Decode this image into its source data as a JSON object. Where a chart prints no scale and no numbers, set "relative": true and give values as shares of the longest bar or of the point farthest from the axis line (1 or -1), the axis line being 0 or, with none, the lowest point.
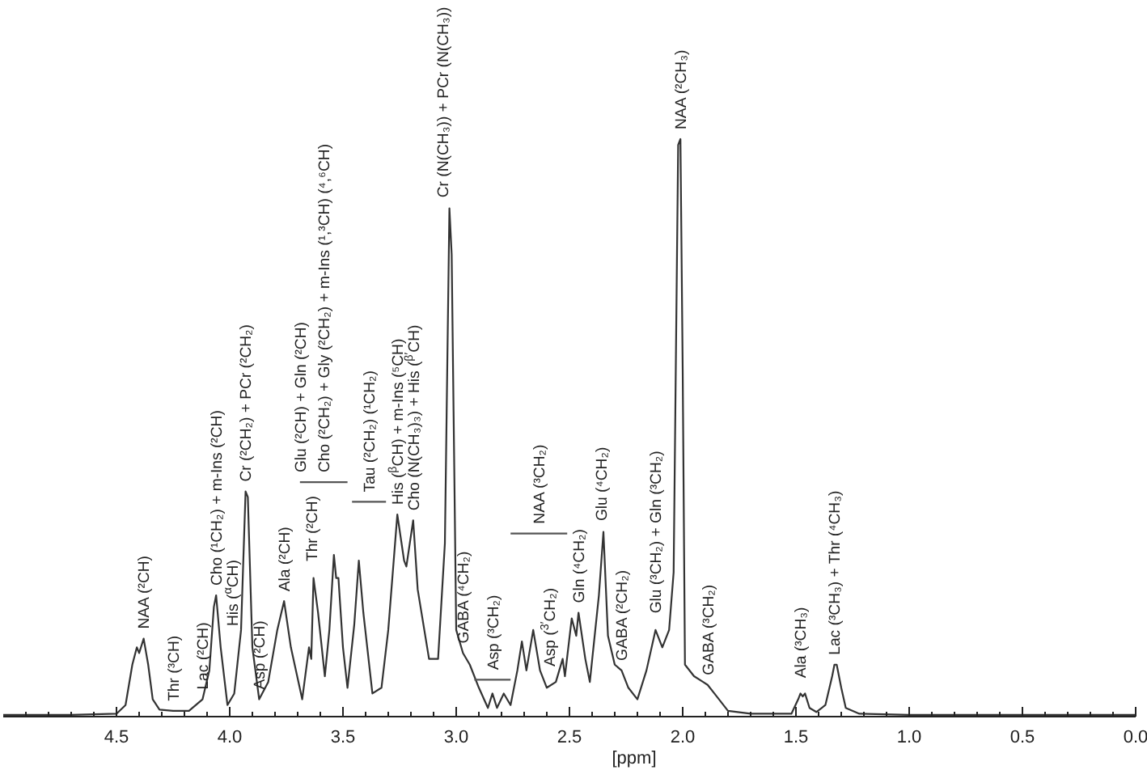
{
  "chart_data": {
    "type": "line",
    "relative": true,
    "xlabel": "[ppm]",
    "xlim": [
      5.0,
      0.0
    ],
    "xticks": [
      {
        "value": 4.9,
        "label": null
      },
      {
        "value": 4.8,
        "label": null
      },
      {
        "value": 4.7,
        "label": null
      },
      {
        "value": 4.6,
        "label": null
      },
      4.5,
      {
        "value": 4.4,
        "label": null
      },
      {
        "value": 4.3,
        "label": null
      },
      {
        "value": 4.2,
        "label": null
      },
      {
        "value": 4.1,
        "label": null
      },
      {
        "value": 4.0,
        "label": "4.0"
      },
      {
        "value": 3.9,
        "label": null
      },
      {
        "value": 3.8,
        "label": null
      },
      {
        "value": 3.7,
        "label": null
      },
      {
        "value": 3.6,
        "label": null
      },
      3.5,
      {
        "value": 3.4,
        "label": null
      },
      {
        "value": 3.3,
        "label": null
      },
      {
        "value": 3.2,
        "label": null
      },
      {
        "value": 3.1,
        "label": null
      },
      {
        "value": 3.0,
        "label": "3.0"
      },
      {
        "value": 2.9,
        "label": null
      },
      {
        "value": 2.8,
        "label": null
      },
      {
        "value": 2.7,
        "label": null
      },
      {
        "value": 2.6,
        "label": null
      },
      2.5,
      {
        "value": 2.4,
        "label": null
      },
      {
        "value": 2.3,
        "label": null
      },
      {
        "value": 2.2,
        "label": null
      },
      {
        "value": 2.1,
        "label": null
      },
      {
        "value": 2.0,
        "label": "2.0"
      },
      {
        "value": 1.9,
        "label": null
      },
      {
        "value": 1.8,
        "label": null
      },
      {
        "value": 1.7,
        "label": null
      },
      {
        "value": 1.6,
        "label": null
      },
      1.5,
      {
        "value": 1.4,
        "label": null
      },
      {
        "value": 1.3,
        "label": null
      },
      {
        "value": 1.2,
        "label": null
      },
      {
        "value": 1.1,
        "label": null
      },
      {
        "value": 1.0,
        "label": "1.0"
      },
      {
        "value": 0.9,
        "label": null
      },
      {
        "value": 0.8,
        "label": null
      },
      {
        "value": 0.7,
        "label": null
      },
      {
        "value": 0.6,
        "label": null
      },
      0.5,
      {
        "value": 0.4,
        "label": null
      },
      {
        "value": 0.3,
        "label": null
      },
      {
        "value": 0.2,
        "label": null
      },
      {
        "value": 0.1,
        "label": null
      },
      {
        "value": 0.0,
        "label": "0.0"
      }
    ],
    "x": [
      5.0,
      4.7,
      4.5,
      4.46,
      4.43,
      4.41,
      4.4,
      4.38,
      4.36,
      4.34,
      4.31,
      4.25,
      4.18,
      4.12,
      4.09,
      4.07,
      4.06,
      4.04,
      4.01,
      3.98,
      3.95,
      3.93,
      3.92,
      3.9,
      3.87,
      3.83,
      3.79,
      3.76,
      3.73,
      3.68,
      3.65,
      3.64,
      3.63,
      3.61,
      3.58,
      3.56,
      3.54,
      3.53,
      3.52,
      3.5,
      3.48,
      3.45,
      3.43,
      3.41,
      3.37,
      3.33,
      3.3,
      3.26,
      3.23,
      3.22,
      3.19,
      3.17,
      3.12,
      3.08,
      3.05,
      3.03,
      3.02,
      3.0,
      2.97,
      2.94,
      2.9,
      2.86,
      2.84,
      2.82,
      2.79,
      2.76,
      2.73,
      2.71,
      2.69,
      2.66,
      2.63,
      2.6,
      2.56,
      2.53,
      2.52,
      2.49,
      2.47,
      2.46,
      2.43,
      2.41,
      2.37,
      2.35,
      2.33,
      2.3,
      2.27,
      2.24,
      2.2,
      2.16,
      2.12,
      2.09,
      2.06,
      2.04,
      2.02,
      2.01,
      2.0,
      1.99,
      1.95,
      1.91,
      1.89,
      1.86,
      1.8,
      1.7,
      1.52,
      1.49,
      1.48,
      1.47,
      1.46,
      1.44,
      1.41,
      1.37,
      1.34,
      1.33,
      1.32,
      1.3,
      1.28,
      1.22,
      1.0,
      0.5,
      0.0
    ],
    "series": [
      {
        "color": "#333333",
        "values": [
          0.003,
          0.003,
          0.005,
          0.02,
          0.09,
          0.12,
          0.11,
          0.135,
          0.09,
          0.03,
          0.012,
          0.01,
          0.01,
          0.03,
          0.08,
          0.19,
          0.21,
          0.12,
          0.02,
          0.04,
          0.15,
          0.39,
          0.38,
          0.12,
          0.03,
          0.06,
          0.15,
          0.2,
          0.12,
          0.03,
          0.12,
          0.1,
          0.24,
          0.18,
          0.07,
          0.15,
          0.28,
          0.24,
          0.24,
          0.12,
          0.05,
          0.16,
          0.27,
          0.18,
          0.04,
          0.05,
          0.15,
          0.35,
          0.27,
          0.26,
          0.34,
          0.22,
          0.1,
          0.1,
          0.3,
          0.88,
          0.8,
          0.15,
          0.11,
          0.09,
          0.05,
          0.015,
          0.04,
          0.015,
          0.04,
          0.02,
          0.08,
          0.13,
          0.08,
          0.15,
          0.08,
          0.05,
          0.06,
          0.1,
          0.07,
          0.17,
          0.14,
          0.18,
          0.1,
          0.06,
          0.21,
          0.32,
          0.14,
          0.09,
          0.08,
          0.05,
          0.03,
          0.08,
          0.15,
          0.12,
          0.15,
          0.25,
          0.99,
          1.0,
          0.6,
          0.09,
          0.07,
          0.06,
          0.055,
          0.04,
          0.01,
          0.005,
          0.005,
          0.03,
          0.04,
          0.035,
          0.04,
          0.015,
          0.008,
          0.02,
          0.07,
          0.09,
          0.09,
          0.05,
          0.015,
          0.005,
          0.003,
          0.003,
          0.003
        ]
      },
      {
        "type": "line",
        "color": "#555555",
        "x": [
          3.69,
          3.48
        ],
        "values": [
          0.406,
          0.406
        ]
      },
      {
        "type": "line",
        "color": "#555555",
        "x": [
          3.46,
          3.31
        ],
        "values": [
          0.372,
          0.372
        ]
      },
      {
        "type": "line",
        "color": "#555555",
        "x": [
          2.92,
          2.76
        ],
        "values": [
          0.064,
          0.064
        ]
      },
      {
        "type": "line",
        "color": "#555555",
        "x": [
          2.76,
          2.51
        ],
        "values": [
          0.317,
          0.317
        ]
      }
    ],
    "annotations": [
      {
        "text": "NAA (²CH)",
        "x": 4.38,
        "y": 0.135
      },
      {
        "text": "Thr (³CH)",
        "x": 4.25,
        "y": 0.01
      },
      {
        "text": "Lac (²CH)",
        "x": 4.12,
        "y": 0.03
      },
      {
        "text": "Cho (¹CH₂) + m-Ins (²CH)",
        "x": 4.06,
        "y": 0.21
      },
      {
        "text": "His ($^{α}$CH)",
        "x": 3.99,
        "y": 0.14
      },
      {
        "text": "Cr (²CH₂) + PCr (²CH₂)",
        "x": 3.93,
        "y": 0.39
      },
      {
        "text": "Asp (²CH)",
        "x": 3.87,
        "y": 0.03
      },
      {
        "text": "Ala (²CH)",
        "x": 3.76,
        "y": 0.2
      },
      {
        "text": "Glu (²CH) + Gln (²CH)",
        "x": 3.69,
        "y": 0.406
      },
      {
        "text": "Thr (²CH)",
        "x": 3.64,
        "y": 0.252
      },
      {
        "text": "Cho (²CH₂) + Gly (²CH₂) + m-Ins (¹,³CH) (⁴,⁶CH)",
        "x": 3.585,
        "y": 0.406
      },
      {
        "text": "Tau (²CH₂) (¹CH₂)",
        "x": 3.385,
        "y": 0.372
      },
      {
        "text": "His ($^{β}$CH) + m-Ins (⁵CH)",
        "x": 3.26,
        "y": 0.35
      },
      {
        "text": "Cho (N(CH₃)₃) + His ($^{β′}$CH)",
        "x": 3.19,
        "y": 0.34
      },
      {
        "text": "Cr (N(CH₃)) + PCr (N(CH₃))",
        "x": 3.06,
        "y": 0.882
      },
      {
        "text": "GABA (⁴CH₂)",
        "x": 2.97,
        "y": 0.11
      },
      {
        "text": "Asp (³CH₂)",
        "x": 2.84,
        "y": 0.064
      },
      {
        "text": "NAA (³CH₂)",
        "x": 2.635,
        "y": 0.317
      },
      {
        "text": "Asp ($^{3′}$CH₂)",
        "x": 2.59,
        "y": 0.07
      },
      {
        "text": "Gln (⁴CH₂)",
        "x": 2.46,
        "y": 0.18
      },
      {
        "text": "Glu (⁴CH₂)",
        "x": 2.36,
        "y": 0.322
      },
      {
        "text": "GABA (²CH₂)",
        "x": 2.27,
        "y": 0.08
      },
      {
        "text": "Glu (³CH₂) + Gln (³CH₂)",
        "x": 2.12,
        "y": 0.162
      },
      {
        "text": "NAA (²CH₃)",
        "x": 2.01,
        "y": 1.0
      },
      {
        "text": "GABA (³CH₂)",
        "x": 1.89,
        "y": 0.055
      },
      {
        "text": "Ala (³CH₃)",
        "x": 1.48,
        "y": 0.05
      },
      {
        "text": "Lac (³CH₃) + Thr (⁴CH₃)",
        "x": 1.33,
        "y": 0.09
      }
    ]
  }
}
